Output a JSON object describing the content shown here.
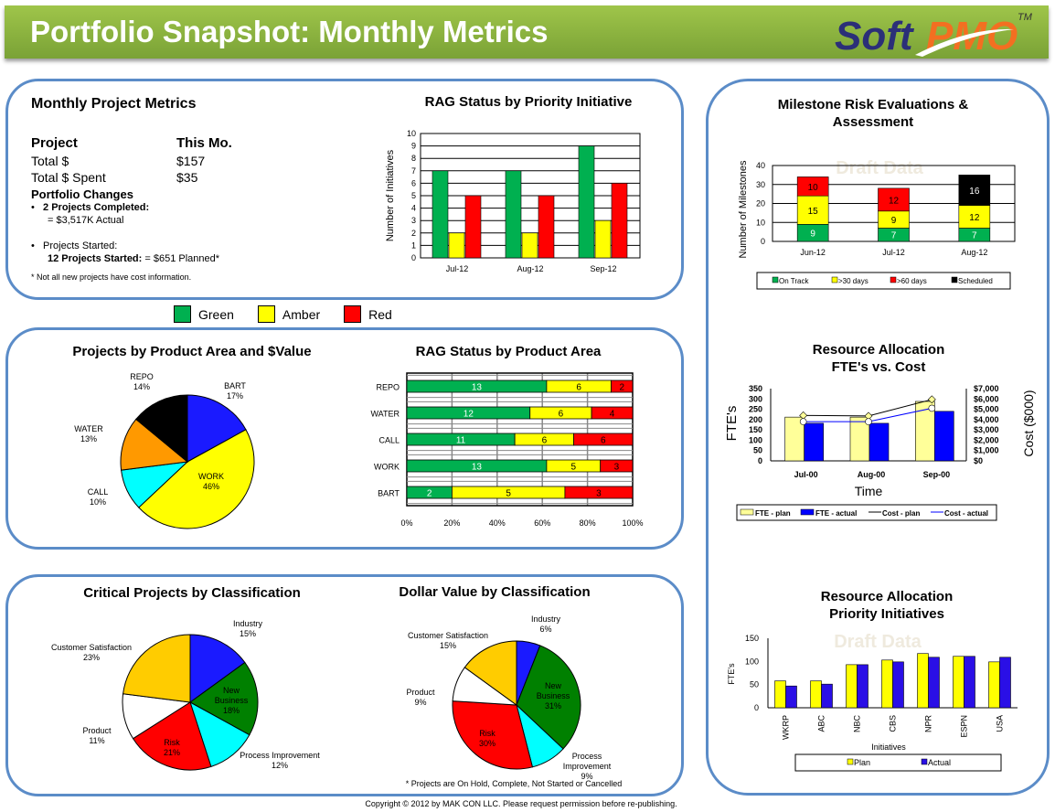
{
  "header": {
    "title": "Portfolio Snapshot: Monthly Metrics",
    "logo_text": "SoftPMO",
    "logo_tm": "TM"
  },
  "colors": {
    "green": "#00b050",
    "amber": "#ffff00",
    "red": "#ff0000",
    "border": "#5b8cc8",
    "header": "#8bb43f"
  },
  "metrics": {
    "title": "Monthly Project Metrics",
    "col_project": "Project",
    "col_month": "This Mo.",
    "rows": [
      {
        "label": "Total $",
        "value": "$157"
      },
      {
        "label": "Total $ Spent",
        "value": "$35"
      }
    ],
    "changes_title": "Portfolio Changes",
    "completed_bold": "2 Projects Completed:",
    "completed_detail": "= $3,517K Actual",
    "started_label": "Projects Started:",
    "started_bold": "12 Projects Started:",
    "started_detail": "= $651 Planned*",
    "footnote": "* Not all new projects have cost information."
  },
  "rag_legend": [
    {
      "label": "Green",
      "color": "#00b050"
    },
    {
      "label": "Amber",
      "color": "#ffff00"
    },
    {
      "label": "Red",
      "color": "#ff0000"
    }
  ],
  "footer": {
    "copyright": "Copyright © 2012 by MAK CON LLC. Please request permission before re-publishing."
  },
  "watermark": "Draft Data",
  "chart_data": [
    {
      "id": "rag_priority",
      "type": "bar",
      "title": "RAG Status by Priority Initiative",
      "ylabel": "Number of Initiatives",
      "xlabel": "",
      "categories": [
        "Jul-12",
        "Aug-12",
        "Sep-12"
      ],
      "ylim": [
        0,
        10
      ],
      "grid": true,
      "series": [
        {
          "name": "Green",
          "color": "#00b050",
          "values": [
            7,
            7,
            9
          ]
        },
        {
          "name": "Amber",
          "color": "#ffff00",
          "values": [
            2,
            2,
            3
          ]
        },
        {
          "name": "Red",
          "color": "#ff0000",
          "values": [
            5,
            5,
            6
          ]
        }
      ]
    },
    {
      "id": "product_pie",
      "type": "pie",
      "title": "Projects by Product Area and $Value",
      "slices": [
        {
          "label": "BART",
          "value": 17,
          "color": "#1a1aff"
        },
        {
          "label": "WORK",
          "value": 46,
          "color": "#ffff00"
        },
        {
          "label": "CALL",
          "value": 10,
          "color": "#00ffff"
        },
        {
          "label": "WATER",
          "value": 13,
          "color": "#ff9900"
        },
        {
          "label": "REPO",
          "value": 14,
          "color": "#000000"
        }
      ]
    },
    {
      "id": "rag_product",
      "type": "bar",
      "orientation": "horizontal-stacked-100",
      "title": "RAG Status by Product Area",
      "categories": [
        "REPO",
        "WATER",
        "CALL",
        "WORK",
        "BART"
      ],
      "xticks": [
        "0%",
        "20%",
        "40%",
        "60%",
        "80%",
        "100%"
      ],
      "grid": true,
      "series": [
        {
          "name": "Green",
          "color": "#00b050",
          "values": [
            13,
            12,
            11,
            13,
            2
          ]
        },
        {
          "name": "Amber",
          "color": "#ffff00",
          "values": [
            6,
            6,
            6,
            5,
            5
          ]
        },
        {
          "name": "Red",
          "color": "#ff0000",
          "values": [
            2,
            4,
            6,
            3,
            3
          ]
        }
      ]
    },
    {
      "id": "critical_pie",
      "type": "pie",
      "title": "Critical Projects by Classification",
      "slices": [
        {
          "label": "Industry",
          "value": 15,
          "color": "#1a1aff"
        },
        {
          "label": "New Business",
          "value": 18,
          "color": "#008000"
        },
        {
          "label": "Process Improvement",
          "value": 12,
          "color": "#00ffff"
        },
        {
          "label": "Risk",
          "value": 21,
          "color": "#ff0000"
        },
        {
          "label": "Product",
          "value": 11,
          "color": "#ffffff"
        },
        {
          "label": "Customer Satisfaction",
          "value": 23,
          "color": "#ffcc00"
        }
      ]
    },
    {
      "id": "dollar_pie",
      "type": "pie",
      "title": "Dollar Value by Classification",
      "footnote": "* Projects are On Hold, Complete, Not Started or Cancelled",
      "slices": [
        {
          "label": "Industry",
          "value": 6,
          "color": "#1a1aff"
        },
        {
          "label": "New Business",
          "value": 31,
          "color": "#008000"
        },
        {
          "label": "Process Improvement",
          "value": 9,
          "color": "#00ffff"
        },
        {
          "label": "Risk",
          "value": 30,
          "color": "#ff0000"
        },
        {
          "label": "Product",
          "value": 9,
          "color": "#ffffff"
        },
        {
          "label": "Customer Satisfaction",
          "value": 15,
          "color": "#ffcc00"
        }
      ]
    },
    {
      "id": "milestones",
      "type": "bar",
      "orientation": "stacked",
      "title": "Milestone Risk Evaluations & Assessment",
      "ylabel": "Number of Milestones",
      "categories": [
        "Jun-12",
        "Jul-12",
        "Aug-12"
      ],
      "ylim": [
        0,
        40
      ],
      "grid": true,
      "legend": "bottom",
      "series": [
        {
          "name": "On Track",
          "color": "#00b050",
          "values": [
            9,
            7,
            7
          ]
        },
        {
          "name": ">30 days",
          "color": "#ffff00",
          "values": [
            15,
            9,
            12
          ]
        },
        {
          "name": ">60 days",
          "color": "#ff0000",
          "values": [
            10,
            12,
            0
          ]
        },
        {
          "name": "Scheduled",
          "color": "#000000",
          "values": [
            0,
            0,
            16
          ]
        }
      ]
    },
    {
      "id": "fte_cost",
      "type": "bar",
      "title": "Resource Allocation FTE's vs. Cost",
      "ylabel": "FTE's",
      "y2label": "Cost ($000)",
      "xlabel": "Time",
      "categories": [
        "Jul-00",
        "Aug-00",
        "Sep-00"
      ],
      "ylim": [
        0,
        350
      ],
      "y2lim": [
        0,
        7000
      ],
      "yticks": [
        "0",
        "50",
        "100",
        "150",
        "200",
        "250",
        "300",
        "350"
      ],
      "y2ticks": [
        "$0",
        "$1,000",
        "$2,000",
        "$3,000",
        "$4,000",
        "$5,000",
        "$6,000",
        "$7,000"
      ],
      "legend": "bottom",
      "series": [
        {
          "name": "FTE - plan",
          "kind": "bar",
          "color": "#ffff99",
          "values": [
            212,
            212,
            288
          ]
        },
        {
          "name": "FTE - actual",
          "kind": "bar",
          "color": "#0000ff",
          "values": [
            182,
            182,
            240
          ]
        },
        {
          "name": "Cost - plan",
          "kind": "line",
          "axis": "right",
          "color": "#000000",
          "values": [
            4400,
            4350,
            5950
          ]
        },
        {
          "name": "Cost - actual",
          "kind": "line",
          "axis": "right",
          "color": "#0000ff",
          "values": [
            3800,
            3800,
            5100
          ]
        }
      ]
    },
    {
      "id": "priority_fte",
      "type": "bar",
      "title": "Resource Allocation Priority Initiatives",
      "ylabel": "FTE's",
      "xlabel": "Initiatives",
      "categories": [
        "WKRP",
        "ABC",
        "NBC",
        "CBS",
        "NPR",
        "ESPN",
        "USA"
      ],
      "ylim": [
        0,
        150
      ],
      "legend": "bottom",
      "series": [
        {
          "name": "Plan",
          "color": "#ffff00",
          "values": [
            58,
            58,
            93,
            103,
            117,
            111,
            99
          ]
        },
        {
          "name": "Actual",
          "color": "#2a0fe6",
          "values": [
            47,
            51,
            93,
            99,
            109,
            111,
            109
          ]
        }
      ]
    }
  ]
}
